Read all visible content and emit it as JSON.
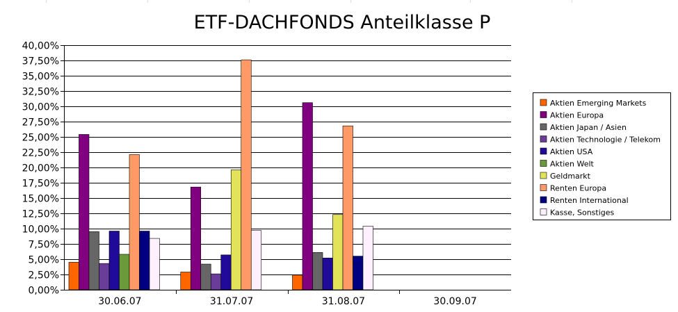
{
  "chart_data": {
    "type": "bar",
    "title": "ETF-DACHFONDS Anteilklasse P",
    "categories": [
      "30.06.07",
      "31.07.07",
      "31.08.07",
      "30.09.07"
    ],
    "y_ticks": [
      "0,00%",
      "2,50%",
      "5,00%",
      "7,50%",
      "10,00%",
      "12,50%",
      "15,00%",
      "17,50%",
      "20,00%",
      "22,50%",
      "25,00%",
      "27,50%",
      "30,00%",
      "32,50%",
      "35,00%",
      "37,50%",
      "40,00%"
    ],
    "ylim": [
      0,
      40
    ],
    "y_unit": "%",
    "grid": "horizontal",
    "legend_position": "right",
    "series": [
      {
        "name": "Aktien Emerging Markets",
        "color": "#ff6600",
        "values": [
          4.5,
          2.9,
          2.4,
          null
        ]
      },
      {
        "name": "Aktien Europa",
        "color": "#800080",
        "values": [
          25.4,
          16.8,
          30.6,
          null
        ]
      },
      {
        "name": "Aktien Japan / Asien",
        "color": "#666666",
        "values": [
          9.5,
          4.2,
          6.1,
          null
        ]
      },
      {
        "name": "Aktien Technologie / Telekom",
        "color": "#6a3d9a",
        "values": [
          4.3,
          2.6,
          null,
          null
        ]
      },
      {
        "name": "Aktien USA",
        "color": "#1f0a99",
        "values": [
          9.6,
          5.7,
          5.2,
          null
        ]
      },
      {
        "name": "Aktien Welt",
        "color": "#6a9a3a",
        "values": [
          5.8,
          null,
          null,
          null
        ]
      },
      {
        "name": "Geldmarkt",
        "color": "#e3e35a",
        "values": [
          null,
          19.6,
          12.3,
          null
        ]
      },
      {
        "name": "Renten Europa",
        "color": "#ff9966",
        "values": [
          22.1,
          37.6,
          26.8,
          null
        ]
      },
      {
        "name": "Renten International",
        "color": "#000080",
        "values": [
          9.6,
          null,
          5.5,
          null
        ]
      },
      {
        "name": "Kasse, Sonstiges",
        "color": "#fff0ff",
        "values": [
          8.4,
          9.7,
          10.4,
          null
        ]
      }
    ]
  }
}
